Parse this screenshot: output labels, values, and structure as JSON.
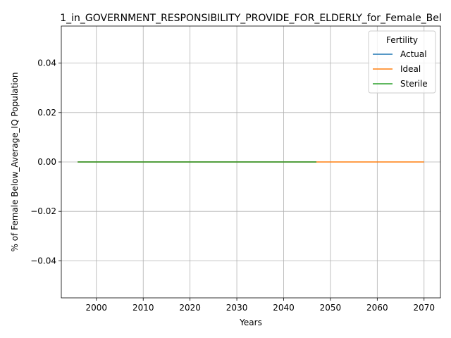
{
  "chart_data": {
    "type": "line",
    "title": "1_in_GOVERNMENT_RESPONSIBILITY_PROVIDE_FOR_ELDERLY_for_Female_Bel",
    "xlabel": "Years",
    "ylabel": "% of Female Below_Average_IQ Population",
    "xlim": [
      1992.5,
      2073.5
    ],
    "ylim": [
      -0.055,
      0.055
    ],
    "xticks": [
      2000,
      2010,
      2020,
      2030,
      2040,
      2050,
      2060,
      2070
    ],
    "yticks": [
      -0.04,
      -0.02,
      0.0,
      0.02,
      0.04
    ],
    "ytick_labels": [
      "−0.04",
      "−0.02",
      "0.00",
      "0.02",
      "0.04"
    ],
    "grid": true,
    "legend": {
      "title": "Fertility",
      "placement": "top-right"
    },
    "series": [
      {
        "name": "Actual",
        "color": "#1f77b4",
        "x": [
          1996,
          2047
        ],
        "y": [
          0,
          0
        ]
      },
      {
        "name": "Ideal",
        "color": "#ff7f0e",
        "x": [
          1996,
          2070
        ],
        "y": [
          0,
          0
        ]
      },
      {
        "name": "Sterile",
        "color": "#2ca02c",
        "x": [
          1996,
          2047
        ],
        "y": [
          0,
          0
        ]
      }
    ]
  }
}
